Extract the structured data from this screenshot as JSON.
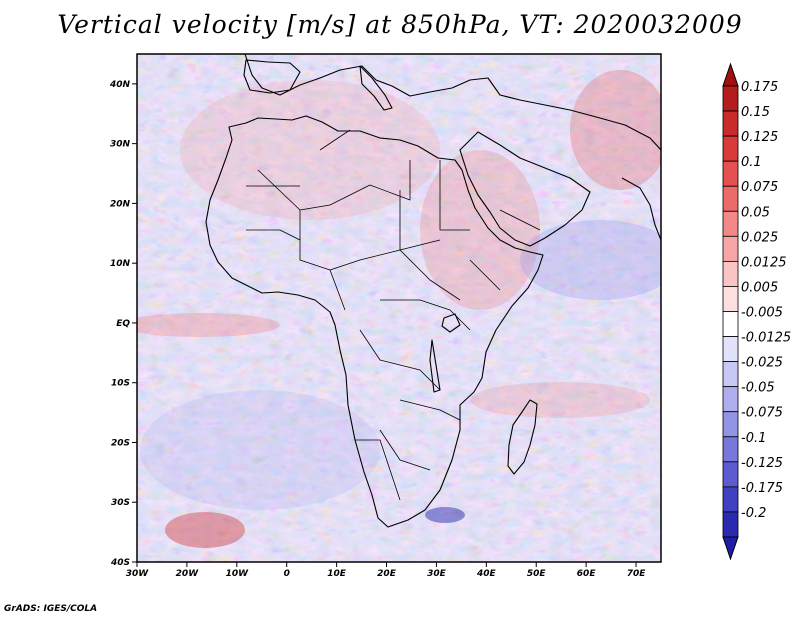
{
  "title": "Vertical velocity [m/s] at 850hPa, VT: 2020032009",
  "credit": "GrADS: IGES/COLA",
  "map": {
    "lon_range": [
      -30,
      75
    ],
    "lat_range": [
      -40,
      45
    ],
    "lat_ticks": [
      {
        "value": 40,
        "label": "40N"
      },
      {
        "value": 30,
        "label": "30N"
      },
      {
        "value": 20,
        "label": "20N"
      },
      {
        "value": 10,
        "label": "10N"
      },
      {
        "value": 0,
        "label": "EQ"
      },
      {
        "value": -10,
        "label": "10S"
      },
      {
        "value": -20,
        "label": "20S"
      },
      {
        "value": -30,
        "label": "30S"
      },
      {
        "value": -40,
        "label": "40S"
      }
    ],
    "lon_ticks": [
      {
        "value": -30,
        "label": "30W"
      },
      {
        "value": -20,
        "label": "20W"
      },
      {
        "value": -10,
        "label": "10W"
      },
      {
        "value": 0,
        "label": "0"
      },
      {
        "value": 10,
        "label": "10E"
      },
      {
        "value": 20,
        "label": "20E"
      },
      {
        "value": 30,
        "label": "30E"
      },
      {
        "value": 40,
        "label": "40E"
      },
      {
        "value": 50,
        "label": "50E"
      },
      {
        "value": 60,
        "label": "60E"
      },
      {
        "value": 70,
        "label": "70E"
      }
    ]
  },
  "colorbar": {
    "levels": [
      {
        "label": "0.175",
        "color": "#b51c1c"
      },
      {
        "label": "0.15",
        "color": "#c92a2a"
      },
      {
        "label": "0.125",
        "color": "#d93a3a"
      },
      {
        "label": "0.1",
        "color": "#e55050"
      },
      {
        "label": "0.075",
        "color": "#ec6a6a"
      },
      {
        "label": "0.05",
        "color": "#f28888"
      },
      {
        "label": "0.025",
        "color": "#f6a6a6"
      },
      {
        "label": "0.0125",
        "color": "#f9c4c4"
      },
      {
        "label": "0.005",
        "color": "#fce0e0"
      },
      {
        "label": "-0.005",
        "color": "#ffffff"
      },
      {
        "label": "-0.0125",
        "color": "#e2e2fa"
      },
      {
        "label": "-0.025",
        "color": "#c8c8f4"
      },
      {
        "label": "-0.05",
        "color": "#aeaeee"
      },
      {
        "label": "-0.075",
        "color": "#9494e6"
      },
      {
        "label": "-0.1",
        "color": "#7878dc"
      },
      {
        "label": "-0.125",
        "color": "#5c5cd0"
      },
      {
        "label": "-0.175",
        "color": "#4040c2"
      },
      {
        "label": "-0.2",
        "color": "#2a2ab0"
      }
    ],
    "top_color": "#a01010",
    "bottom_color": "#1e1ea4"
  }
}
